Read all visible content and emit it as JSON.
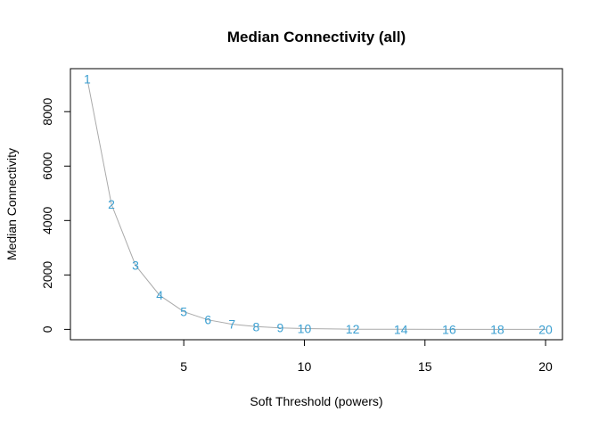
{
  "chart_data": {
    "type": "line",
    "title": "Median Connectivity (all)",
    "xlabel": "Soft Threshold (powers)",
    "ylabel": "Median Connectivity",
    "xlim": [
      0.3,
      20.7
    ],
    "ylim": [
      -380,
      9580
    ],
    "xticks": [
      5,
      10,
      15,
      20
    ],
    "yticks": [
      0,
      2000,
      4000,
      6000,
      8000
    ],
    "x": [
      1,
      2,
      3,
      4,
      5,
      6,
      7,
      8,
      9,
      10,
      12,
      14,
      16,
      18,
      20
    ],
    "y": [
      9200,
      4600,
      2350,
      1250,
      650,
      350,
      190,
      100,
      55,
      30,
      8,
      2,
      1,
      0,
      0
    ],
    "point_labels": [
      "1",
      "2",
      "3",
      "4",
      "5",
      "6",
      "7",
      "8",
      "9",
      "10",
      "12",
      "14",
      "16",
      "18",
      "20"
    ],
    "line_color": "#aaaaaa",
    "label_color": "#3b9fd1",
    "grid": false,
    "legend": "none"
  }
}
